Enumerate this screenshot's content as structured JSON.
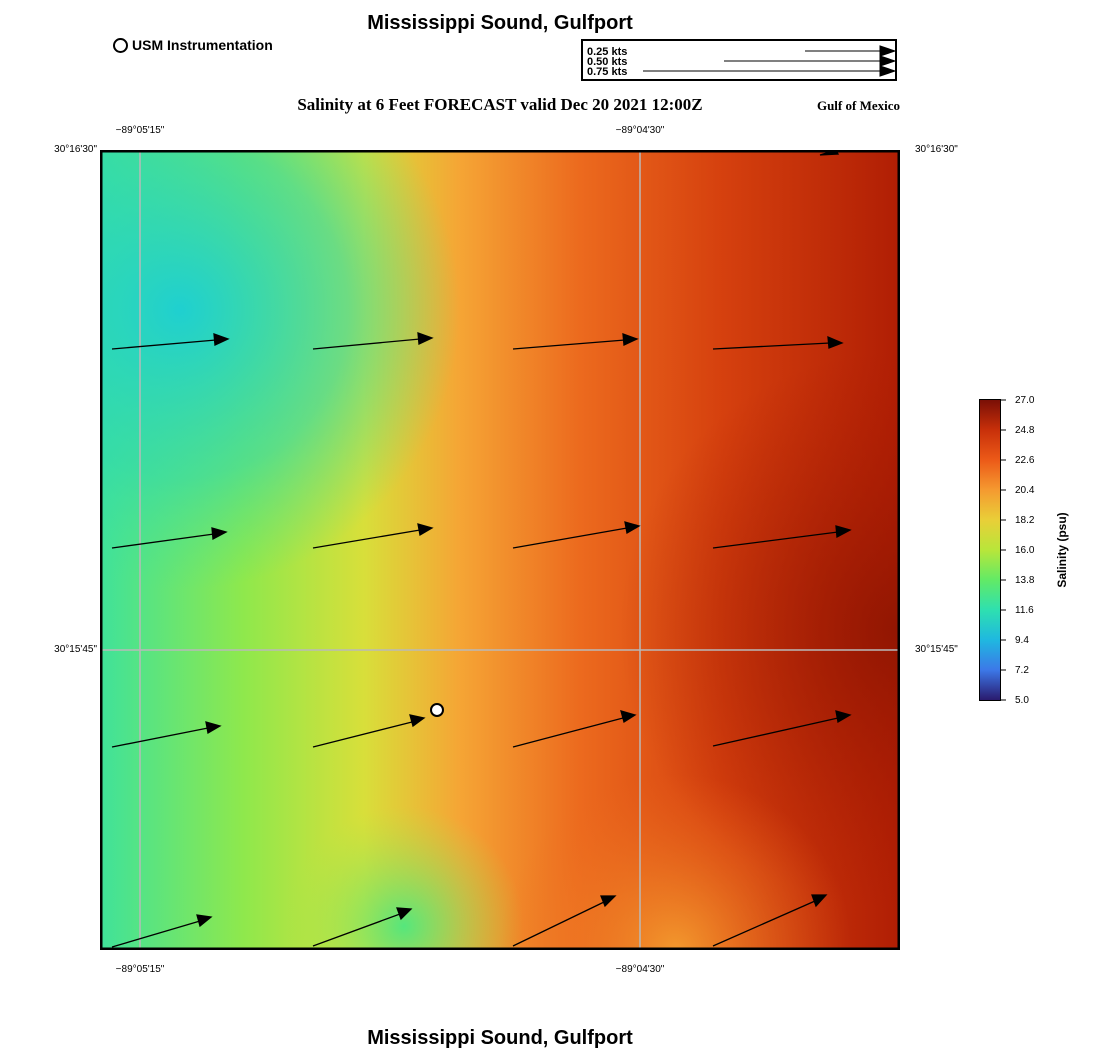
{
  "header": {
    "title": "Mississippi Sound, Gulfport",
    "subtitle": "Salinity at 6 Feet FORECAST valid Dec 20 2021 12:00Z",
    "region": "Gulf of Mexico",
    "footer": "Mississippi Sound, Gulfport"
  },
  "station_legend": {
    "label": "USM Instrumentation"
  },
  "vector_scale": {
    "labels": [
      "0.25 kts",
      "0.50 kts",
      "0.75 kts"
    ]
  },
  "map": {
    "lon_labels": [
      "−89°05'15\"",
      "−89°04'30\""
    ],
    "lat_labels": [
      "30°16'30\"",
      "30°15'45\""
    ]
  },
  "colorbar": {
    "title": "Salinity (psu)",
    "ticks": [
      "27.0",
      "24.8",
      "22.6",
      "20.4",
      "18.2",
      "16.0",
      "13.8",
      "11.6",
      "9.4",
      "7.2",
      "5.0"
    ],
    "colors": [
      "#7a0f06",
      "#c8300a",
      "#ec5a18",
      "#f59a30",
      "#e9cf38",
      "#b8e63a",
      "#62ea66",
      "#2ee0b0",
      "#1fb8e0",
      "#3c78e8",
      "#2a1a6e"
    ]
  }
}
